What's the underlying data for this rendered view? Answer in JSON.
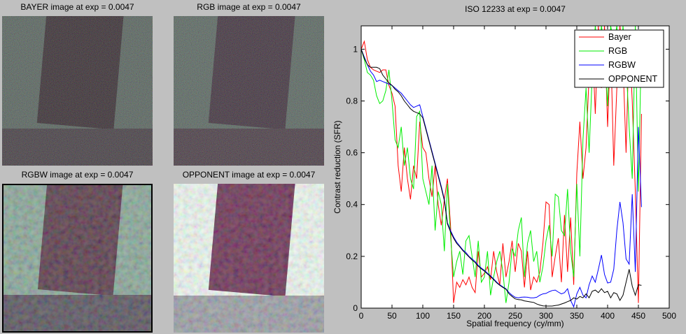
{
  "window": {
    "background": "#c0c0c0"
  },
  "panels": [
    {
      "title": "BAYER image at exp = 0.0047",
      "bg": "#3d4b44",
      "rect_color": "#190d13",
      "strip_color": "#282026",
      "border": false,
      "noise": "fine",
      "pattern": "plain"
    },
    {
      "title": "RGB image at exp = 0.0047",
      "bg": "#404f48",
      "rect_color": "#231320",
      "strip_color": "#2d1e28",
      "border": false,
      "noise": "fine",
      "pattern": "grid"
    },
    {
      "title": "RGBW image at exp = 0.0047",
      "bg": "#7d9c8d",
      "rect_color": "#4a2a3a",
      "strip_color": "#4a4450",
      "border": true,
      "noise": "coarse",
      "pattern": "plain"
    },
    {
      "title": "OPPONENT image at exp = 0.0047",
      "bg": "#e7f2ea",
      "rect_color": "#5e2145",
      "strip_color": "#90939a",
      "border": false,
      "noise": "coarse",
      "pattern": "plain"
    }
  ],
  "chart_data": {
    "type": "line",
    "title": "ISO 12233 at exp = 0.0047",
    "xlabel": "Spatial frequency (cy/mm)",
    "ylabel": "Contrast reduction (SFR)",
    "xlim": [
      0,
      500
    ],
    "ylim": [
      0,
      1.09
    ],
    "xticks": [
      0,
      50,
      100,
      150,
      200,
      250,
      300,
      350,
      400,
      450,
      500
    ],
    "yticks": [
      0,
      0.2,
      0.4,
      0.6,
      0.8,
      1
    ],
    "grid": false,
    "legend_position": "top-right",
    "plot_bg": "#ffffff",
    "x": [
      0,
      5,
      10,
      15,
      20,
      25,
      30,
      35,
      40,
      45,
      50,
      55,
      60,
      65,
      70,
      75,
      80,
      85,
      90,
      95,
      100,
      105,
      110,
      115,
      120,
      125,
      130,
      135,
      140,
      145,
      150,
      155,
      160,
      165,
      170,
      175,
      180,
      185,
      190,
      195,
      200,
      205,
      210,
      215,
      220,
      225,
      230,
      235,
      240,
      245,
      250,
      255,
      260,
      265,
      270,
      275,
      280,
      285,
      290,
      295,
      300,
      305,
      310,
      315,
      320,
      325,
      330,
      335,
      340,
      345,
      350,
      355,
      360,
      365,
      370,
      375,
      380,
      385,
      390,
      395,
      400,
      405,
      410,
      415,
      420,
      425,
      430,
      435,
      440,
      445,
      450,
      455
    ],
    "series": [
      {
        "name": "Bayer",
        "color": "#ff0000",
        "values": [
          1.0,
          1.03,
          0.96,
          0.93,
          0.92,
          0.915,
          0.91,
          0.92,
          0.92,
          0.86,
          0.83,
          0.78,
          0.55,
          0.45,
          0.62,
          0.5,
          0.42,
          0.55,
          0.5,
          0.72,
          0.62,
          0.6,
          0.5,
          0.43,
          0.55,
          0.4,
          0.32,
          0.42,
          0.5,
          0.32,
          0.02,
          0.1,
          0.08,
          0.11,
          0.09,
          0.12,
          0.08,
          0.06,
          0.22,
          0.12,
          0.135,
          0.16,
          0.11,
          0.22,
          0.14,
          0.09,
          0.25,
          0.12,
          0.18,
          0.26,
          0.14,
          0.25,
          0.22,
          0.08,
          0.22,
          0.07,
          0.12,
          0.1,
          0.14,
          0.25,
          0.41,
          0.4,
          0.12,
          0.2,
          0.27,
          0.1,
          0.36,
          0.14,
          0.35,
          0.09,
          0.52,
          0.72,
          0.5,
          0.62,
          0.9,
          1.05,
          0.75,
          1.09,
          0.85,
          1.09,
          0.7,
          1.02,
          0.55,
          0.85,
          1.09,
          0.95,
          0.6,
          1.05,
          0.8,
          0.45,
          0.02,
          0.75
        ]
      },
      {
        "name": "RGB",
        "color": "#00ee00",
        "values": [
          1.0,
          0.96,
          0.91,
          0.9,
          0.88,
          0.82,
          0.79,
          0.8,
          0.84,
          0.92,
          0.8,
          0.65,
          0.62,
          0.7,
          0.55,
          0.62,
          0.5,
          0.46,
          0.74,
          0.76,
          0.5,
          0.45,
          0.4,
          0.55,
          0.3,
          0.45,
          0.4,
          0.22,
          0.48,
          0.28,
          0.12,
          0.18,
          0.22,
          0.13,
          0.26,
          0.28,
          0.2,
          0.12,
          0.26,
          0.1,
          0.12,
          0.22,
          0.05,
          0.12,
          0.18,
          0.22,
          0.14,
          0.02,
          0.1,
          0.23,
          0.2,
          0.3,
          0.35,
          0.12,
          0.25,
          0.3,
          0.18,
          0.22,
          0.1,
          0.16,
          0.26,
          0.32,
          0.2,
          0.44,
          0.43,
          0.3,
          0.28,
          0.46,
          0.22,
          0.12,
          0.48,
          0.2,
          0.65,
          0.85,
          0.6,
          0.9,
          1.09,
          0.95,
          1.09,
          1.0,
          0.78,
          1.09,
          1.02,
          1.09,
          0.88,
          1.09,
          0.95,
          0.7,
          0.5,
          1.09,
          0.45,
          1.05
        ]
      },
      {
        "name": "RGBW",
        "color": "#0000ff",
        "values": [
          1.0,
          0.97,
          0.94,
          0.915,
          0.9,
          0.875,
          0.88,
          0.875,
          0.87,
          0.865,
          0.86,
          0.85,
          0.84,
          0.83,
          0.815,
          0.8,
          0.785,
          0.775,
          0.78,
          0.785,
          0.74,
          0.695,
          0.65,
          0.605,
          0.56,
          0.515,
          0.47,
          0.42,
          0.33,
          0.3,
          0.275,
          0.255,
          0.24,
          0.225,
          0.215,
          0.2,
          0.19,
          0.18,
          0.165,
          0.155,
          0.146,
          0.135,
          0.125,
          0.113,
          0.1,
          0.09,
          0.082,
          0.075,
          0.06,
          0.05,
          0.042,
          0.04,
          0.042,
          0.043,
          0.042,
          0.04,
          0.04,
          0.042,
          0.05,
          0.055,
          0.057,
          0.063,
          0.068,
          0.07,
          0.062,
          0.055,
          0.06,
          0.075,
          0.03,
          0.005,
          0.055,
          0.08,
          0.05,
          0.04,
          0.09,
          0.124,
          0.1,
          0.15,
          0.205,
          0.13,
          0.097,
          0.1,
          0.15,
          0.3,
          0.41,
          0.33,
          0.19,
          0.17,
          0.44,
          0.14,
          0.7,
          0.39
        ]
      },
      {
        "name": "OPPONENT",
        "color": "#000000",
        "values": [
          1.0,
          0.965,
          0.94,
          0.93,
          0.93,
          0.93,
          0.925,
          0.9,
          0.885,
          0.87,
          0.86,
          0.845,
          0.835,
          0.82,
          0.8,
          0.785,
          0.77,
          0.76,
          0.755,
          0.75,
          0.735,
          0.69,
          0.645,
          0.6,
          0.555,
          0.51,
          0.465,
          0.415,
          0.325,
          0.295,
          0.27,
          0.25,
          0.237,
          0.222,
          0.21,
          0.198,
          0.186,
          0.176,
          0.162,
          0.152,
          0.143,
          0.132,
          0.122,
          0.11,
          0.098,
          0.088,
          0.08,
          0.073,
          0.055,
          0.045,
          0.036,
          0.033,
          0.032,
          0.028,
          0.026,
          0.024,
          0.022,
          0.016,
          0.012,
          0.009,
          0.008,
          0.008,
          0.008,
          0.01,
          0.012,
          0.016,
          0.02,
          0.025,
          0.03,
          0.04,
          0.035,
          0.045,
          0.04,
          0.055,
          0.04,
          0.065,
          0.07,
          0.06,
          0.075,
          0.06,
          0.065,
          0.04,
          0.06,
          0.055,
          0.03,
          0.05,
          0.1,
          0.15,
          0.085,
          0.05,
          0.09,
          0.088
        ]
      }
    ]
  }
}
